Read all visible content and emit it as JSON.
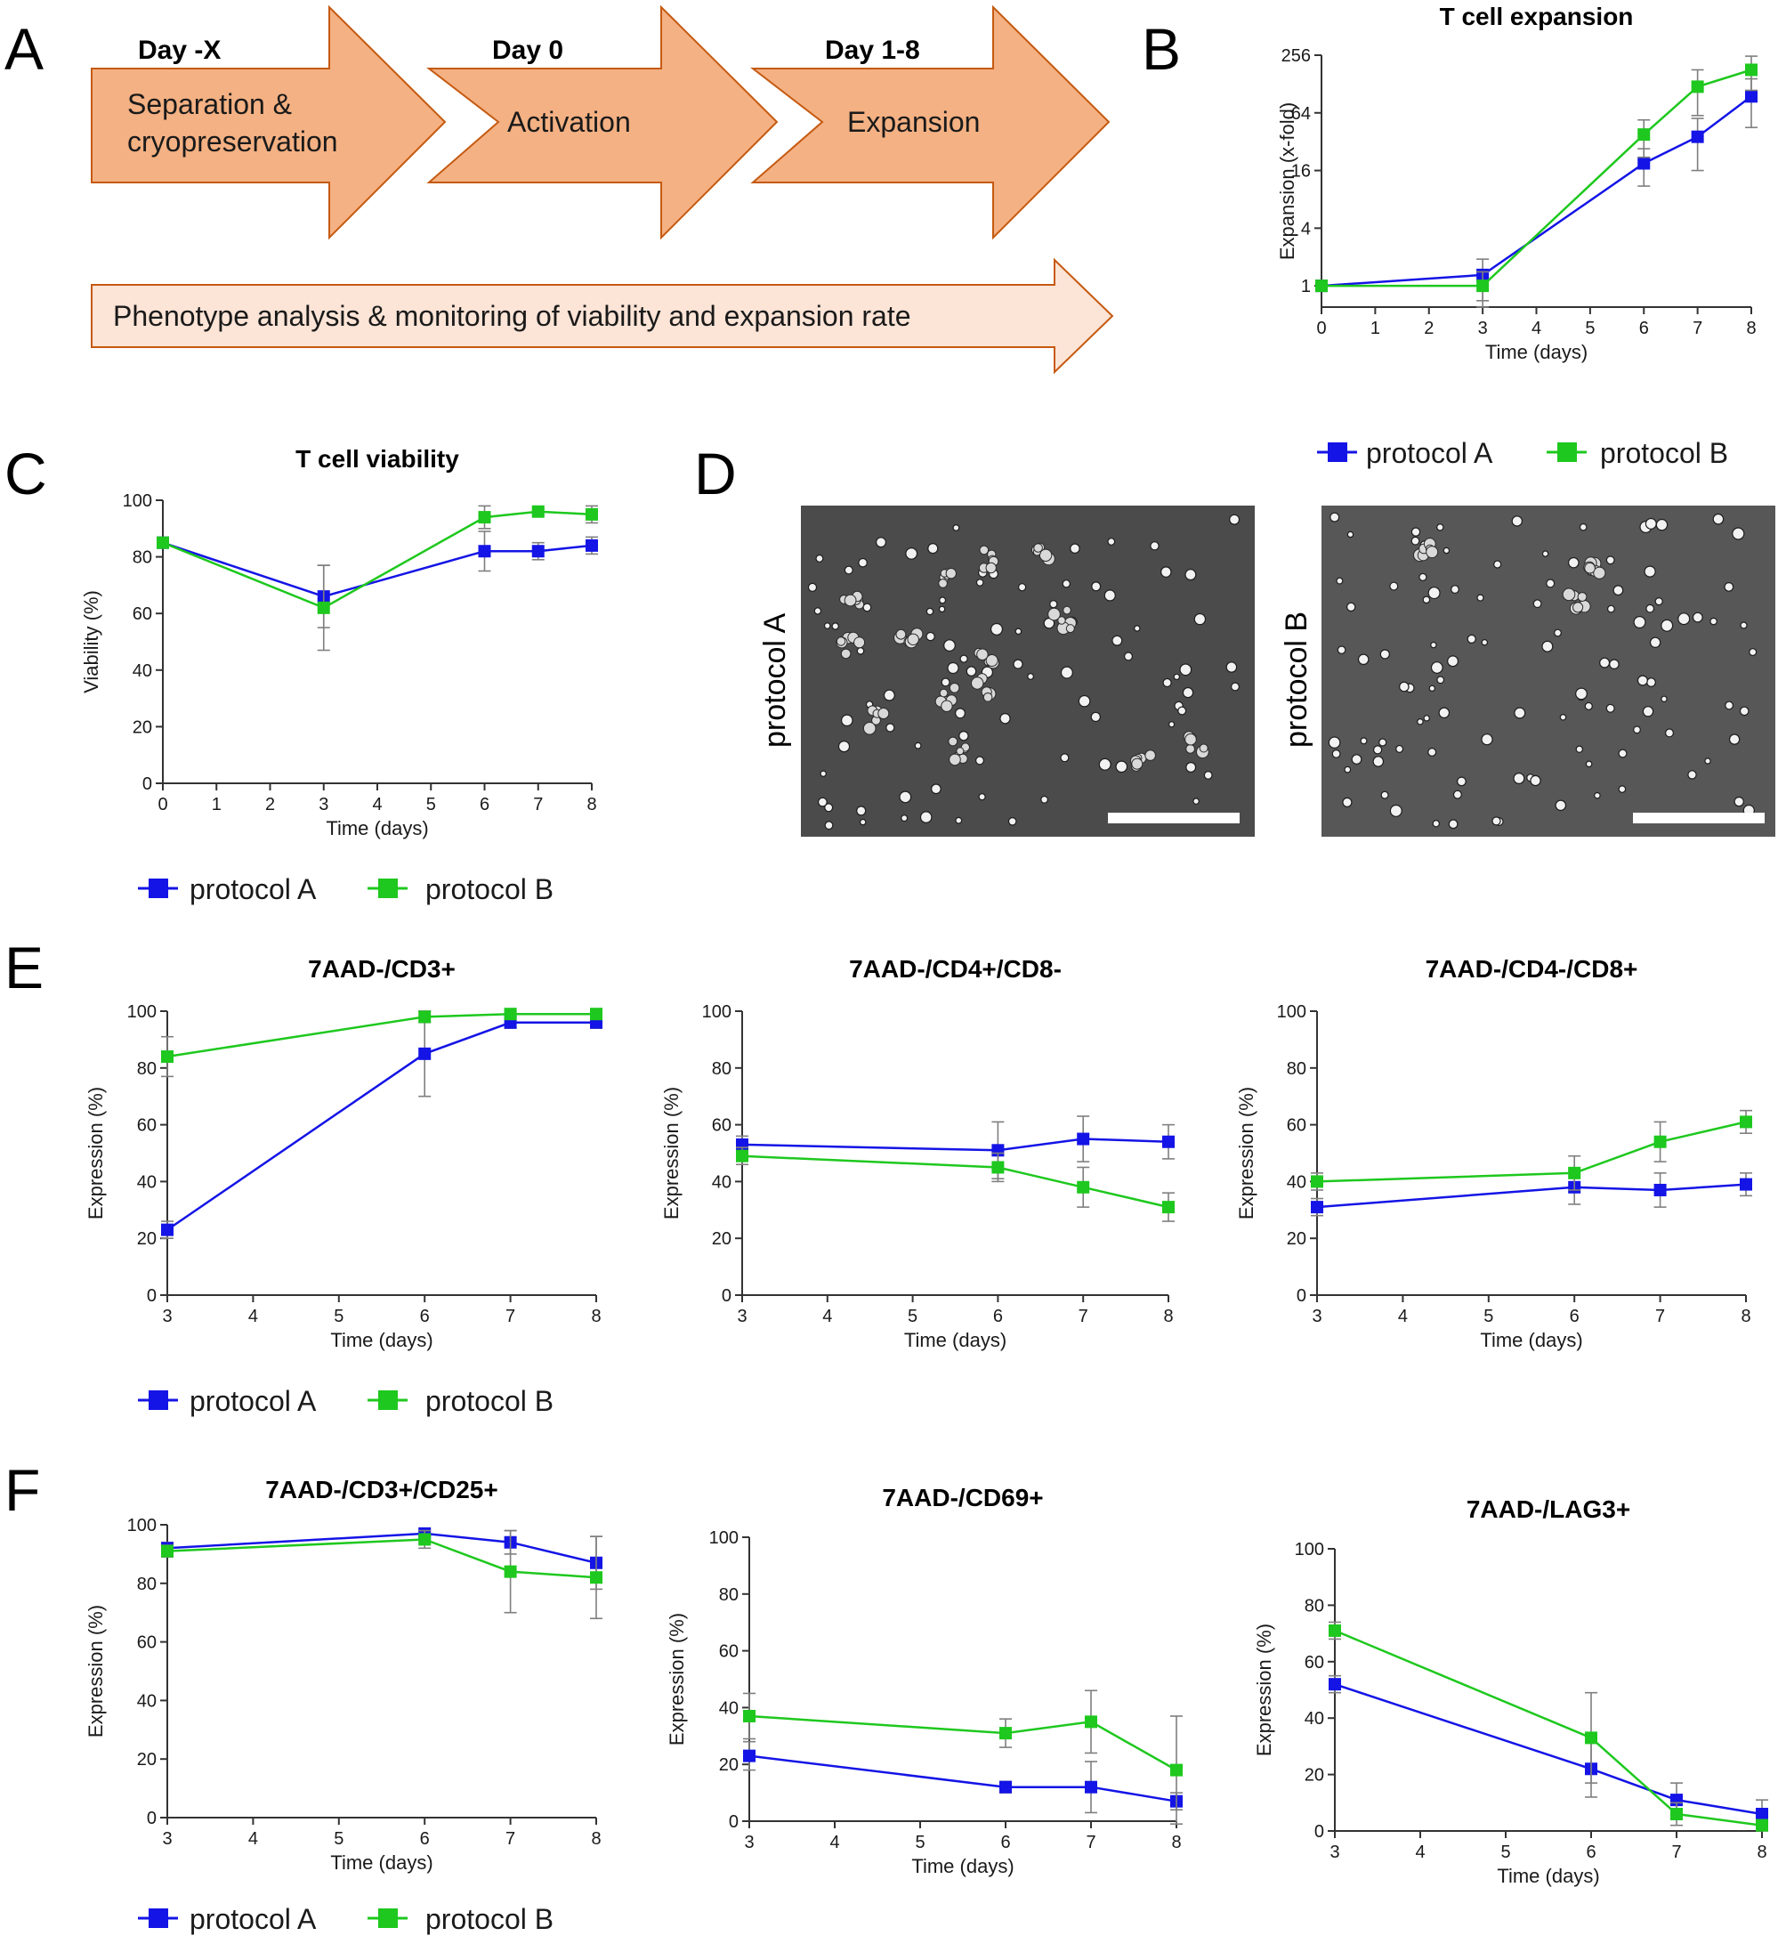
{
  "panel_letters": [
    "A",
    "B",
    "C",
    "D",
    "E",
    "F"
  ],
  "workflow": {
    "steps": [
      {
        "day": "Day -X",
        "label_lines": [
          "Separation &",
          "cryopreservation"
        ]
      },
      {
        "day": "Day 0",
        "label_lines": [
          "Activation"
        ]
      },
      {
        "day": "Day 1-8",
        "label_lines": [
          "Expansion"
        ]
      }
    ],
    "bottom_text": "Phenotype analysis & monitoring of viability and expansion rate",
    "colors": {
      "step_fill": "#f4b183",
      "step_stroke": "#c55a11",
      "bottom_fill": "#fce4d6"
    }
  },
  "legend": {
    "a": "protocol A",
    "b": "protocol B"
  },
  "series_colors": {
    "a": "#1414e6",
    "b": "#1ec81e",
    "error_bars": "#7f7f7f"
  },
  "images": {
    "left_label": "protocol A",
    "right_label": "protocol B"
  },
  "chart_data": [
    {
      "id": "B",
      "type": "line",
      "title": "T cell expansion",
      "xlabel": "Time (days)",
      "ylabel": "Expansion (x-fold)",
      "yscale": "log2",
      "xlim": [
        0,
        8
      ],
      "ylim": [
        0.6,
        256
      ],
      "xticks": [
        0,
        1,
        2,
        3,
        4,
        5,
        6,
        7,
        8
      ],
      "yticks": [
        1,
        4,
        16,
        64,
        256
      ],
      "series": [
        {
          "name": "protocol A",
          "x": [
            0,
            3,
            6,
            7,
            8
          ],
          "y": [
            1,
            1.3,
            19,
            36,
            95
          ],
          "err": [
            0,
            0.6,
            8,
            20,
            50
          ]
        },
        {
          "name": "protocol B",
          "x": [
            0,
            3,
            6,
            7,
            8
          ],
          "y": [
            1,
            1,
            38,
            120,
            180
          ],
          "err": [
            0,
            0.4,
            16,
            60,
            70
          ]
        }
      ]
    },
    {
      "id": "C",
      "type": "line",
      "title": "T cell viability",
      "xlabel": "Time (days)",
      "ylabel": "Viability (%)",
      "xlim": [
        0,
        8
      ],
      "ylim": [
        0,
        100
      ],
      "xticks": [
        0,
        1,
        2,
        3,
        4,
        5,
        6,
        7,
        8
      ],
      "yticks": [
        0,
        20,
        40,
        60,
        80,
        100
      ],
      "series": [
        {
          "name": "protocol A",
          "x": [
            0,
            3,
            6,
            7,
            8
          ],
          "y": [
            85,
            66,
            82,
            82,
            84
          ],
          "err": [
            0,
            11,
            7,
            3,
            3
          ]
        },
        {
          "name": "protocol B",
          "x": [
            0,
            3,
            6,
            7,
            8
          ],
          "y": [
            85,
            62,
            94,
            96,
            95
          ],
          "err": [
            0,
            15,
            4,
            1,
            3
          ]
        }
      ]
    },
    {
      "id": "E1",
      "type": "line",
      "title": "7AAD-/CD3+",
      "xlabel": "Time (days)",
      "ylabel": "Expression (%)",
      "xlim": [
        3,
        8
      ],
      "ylim": [
        0,
        100
      ],
      "xticks": [
        3,
        4,
        5,
        6,
        7,
        8
      ],
      "yticks": [
        0,
        20,
        40,
        60,
        80,
        100
      ],
      "series": [
        {
          "name": "protocol A",
          "x": [
            3,
            6,
            7,
            8
          ],
          "y": [
            23,
            85,
            96,
            96
          ],
          "err": [
            3,
            15,
            2,
            2
          ]
        },
        {
          "name": "protocol B",
          "x": [
            3,
            6,
            7,
            8
          ],
          "y": [
            84,
            98,
            99,
            99
          ],
          "err": [
            7,
            2,
            1,
            1
          ]
        }
      ]
    },
    {
      "id": "E2",
      "type": "line",
      "title": "7AAD-/CD4+/CD8-",
      "xlabel": "Time (days)",
      "ylabel": "Expression (%)",
      "xlim": [
        3,
        8
      ],
      "ylim": [
        0,
        100
      ],
      "xticks": [
        3,
        4,
        5,
        6,
        7,
        8
      ],
      "yticks": [
        0,
        20,
        40,
        60,
        80,
        100
      ],
      "series": [
        {
          "name": "protocol A",
          "x": [
            3,
            6,
            7,
            8
          ],
          "y": [
            53,
            51,
            55,
            54
          ],
          "err": [
            3,
            10,
            8,
            6
          ]
        },
        {
          "name": "protocol B",
          "x": [
            3,
            6,
            7,
            8
          ],
          "y": [
            49,
            45,
            38,
            31
          ],
          "err": [
            3,
            5,
            7,
            5
          ]
        }
      ]
    },
    {
      "id": "E3",
      "type": "line",
      "title": "7AAD-/CD4-/CD8+",
      "xlabel": "Time (days)",
      "ylabel": "Expression (%)",
      "xlim": [
        3,
        8
      ],
      "ylim": [
        0,
        100
      ],
      "xticks": [
        3,
        4,
        5,
        6,
        7,
        8
      ],
      "yticks": [
        0,
        20,
        40,
        60,
        80,
        100
      ],
      "series": [
        {
          "name": "protocol A",
          "x": [
            3,
            6,
            7,
            8
          ],
          "y": [
            31,
            38,
            37,
            39
          ],
          "err": [
            3,
            6,
            6,
            4
          ]
        },
        {
          "name": "protocol B",
          "x": [
            3,
            6,
            7,
            8
          ],
          "y": [
            40,
            43,
            54,
            61
          ],
          "err": [
            3,
            6,
            7,
            4
          ]
        }
      ]
    },
    {
      "id": "F1",
      "type": "line",
      "title": "7AAD-/CD3+/CD25+",
      "xlabel": "Time (days)",
      "ylabel": "Expression (%)",
      "xlim": [
        3,
        8
      ],
      "ylim": [
        0,
        100
      ],
      "xticks": [
        3,
        4,
        5,
        6,
        7,
        8
      ],
      "yticks": [
        0,
        20,
        40,
        60,
        80,
        100
      ],
      "series": [
        {
          "name": "protocol A",
          "x": [
            3,
            6,
            7,
            8
          ],
          "y": [
            92,
            97,
            94,
            87
          ],
          "err": [
            2,
            1,
            4,
            9
          ]
        },
        {
          "name": "protocol B",
          "x": [
            3,
            6,
            7,
            8
          ],
          "y": [
            91,
            95,
            84,
            82
          ],
          "err": [
            2,
            3,
            14,
            14
          ]
        }
      ]
    },
    {
      "id": "F2",
      "type": "line",
      "title": "7AAD-/CD69+",
      "xlabel": "Time (days)",
      "ylabel": "Expression (%)",
      "xlim": [
        3,
        8
      ],
      "ylim": [
        0,
        100
      ],
      "xticks": [
        3,
        4,
        5,
        6,
        7,
        8
      ],
      "yticks": [
        0,
        20,
        40,
        60,
        80,
        100
      ],
      "series": [
        {
          "name": "protocol A",
          "x": [
            3,
            6,
            7,
            8
          ],
          "y": [
            23,
            12,
            12,
            7
          ],
          "err": [
            5,
            2,
            9,
            3
          ]
        },
        {
          "name": "protocol B",
          "x": [
            3,
            6,
            7,
            8
          ],
          "y": [
            37,
            31,
            35,
            18
          ],
          "err": [
            8,
            5,
            11,
            19
          ]
        }
      ]
    },
    {
      "id": "F3",
      "type": "line",
      "title": "7AAD-/LAG3+",
      "xlabel": "Time (days)",
      "ylabel": "Expression (%)",
      "xlim": [
        3,
        8
      ],
      "ylim": [
        0,
        100
      ],
      "xticks": [
        3,
        4,
        5,
        6,
        7,
        8
      ],
      "yticks": [
        0,
        20,
        40,
        60,
        80,
        100
      ],
      "series": [
        {
          "name": "protocol A",
          "x": [
            3,
            6,
            7,
            8
          ],
          "y": [
            52,
            22,
            11,
            6
          ],
          "err": [
            3,
            10,
            6,
            5
          ]
        },
        {
          "name": "protocol B",
          "x": [
            3,
            6,
            7,
            8
          ],
          "y": [
            71,
            33,
            6,
            2
          ],
          "err": [
            3,
            16,
            4,
            2
          ]
        }
      ]
    }
  ]
}
